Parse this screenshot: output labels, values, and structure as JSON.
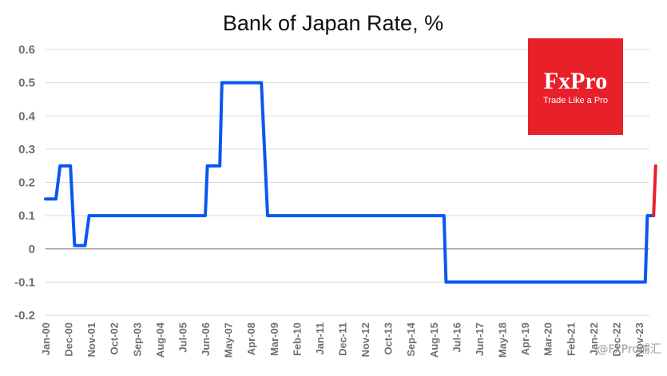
{
  "chart_data": {
    "type": "line",
    "title": "Bank of Japan Rate, %",
    "ylim": [
      -0.2,
      0.6
    ],
    "yticks": [
      0.6,
      0.5,
      0.4,
      0.3,
      0.2,
      0.1,
      0,
      -0.1,
      -0.2
    ],
    "ytick_labels": [
      "0.6",
      "0.5",
      "0.4",
      "0.3",
      "0.2",
      "0.1",
      "0",
      "-0.1",
      "-0.2"
    ],
    "grid": true,
    "x_range": [
      "2000-01",
      "2024-04"
    ],
    "x_tick_labels": [
      {
        "label": "Jan-00",
        "date": "2000-01"
      },
      {
        "label": "Dec-00",
        "date": "2000-12"
      },
      {
        "label": "Nov-01",
        "date": "2001-11"
      },
      {
        "label": "Oct-02",
        "date": "2002-10"
      },
      {
        "label": "Sep-03",
        "date": "2003-09"
      },
      {
        "label": "Aug-04",
        "date": "2004-08"
      },
      {
        "label": "Jul-05",
        "date": "2005-07"
      },
      {
        "label": "Jun-06",
        "date": "2006-06"
      },
      {
        "label": "May-07",
        "date": "2007-05"
      },
      {
        "label": "Apr-08",
        "date": "2008-04"
      },
      {
        "label": "Mar-09",
        "date": "2009-03"
      },
      {
        "label": "Feb-10",
        "date": "2010-02"
      },
      {
        "label": "Jan-11",
        "date": "2011-01"
      },
      {
        "label": "Dec-11",
        "date": "2011-12"
      },
      {
        "label": "Nov-12",
        "date": "2012-11"
      },
      {
        "label": "Oct-13",
        "date": "2013-10"
      },
      {
        "label": "Sep-14",
        "date": "2014-09"
      },
      {
        "label": "Aug-15",
        "date": "2015-08"
      },
      {
        "label": "Jul-16",
        "date": "2016-07"
      },
      {
        "label": "Jun-17",
        "date": "2017-06"
      },
      {
        "label": "May-18",
        "date": "2018-05"
      },
      {
        "label": "Apr-19",
        "date": "2019-04"
      },
      {
        "label": "Mar-20",
        "date": "2020-03"
      },
      {
        "label": "Feb-21",
        "date": "2021-02"
      },
      {
        "label": "Jan-22",
        "date": "2022-01"
      },
      {
        "label": "Dec-22",
        "date": "2022-12"
      },
      {
        "label": "Nov-23",
        "date": "2023-11"
      }
    ],
    "series": [
      {
        "color": "#0a57f0",
        "points": [
          [
            "2000-01",
            0.15
          ],
          [
            "2000-06",
            0.15
          ],
          [
            "2000-08",
            0.25
          ],
          [
            "2001-01",
            0.25
          ],
          [
            "2001-03",
            0.01
          ],
          [
            "2001-08",
            0.01
          ],
          [
            "2001-10",
            0.1
          ],
          [
            "2006-06",
            0.1
          ],
          [
            "2006-07",
            0.25
          ],
          [
            "2007-01",
            0.25
          ],
          [
            "2007-02",
            0.5
          ],
          [
            "2008-09",
            0.5
          ],
          [
            "2008-12",
            0.1
          ],
          [
            "2016-01",
            0.1
          ],
          [
            "2016-02",
            -0.1
          ],
          [
            "2024-02",
            -0.1
          ],
          [
            "2024-03",
            0.1
          ],
          [
            "2024-06",
            0.1
          ]
        ]
      },
      {
        "color": "#e8202a",
        "points": [
          [
            "2024-06",
            0.1
          ],
          [
            "2024-07",
            0.25
          ]
        ]
      }
    ]
  },
  "logo": {
    "brand": "FxPro",
    "tagline": "Trade Like a Pro",
    "color": "#e8202a"
  },
  "watermark": "@FxPro浦汇"
}
